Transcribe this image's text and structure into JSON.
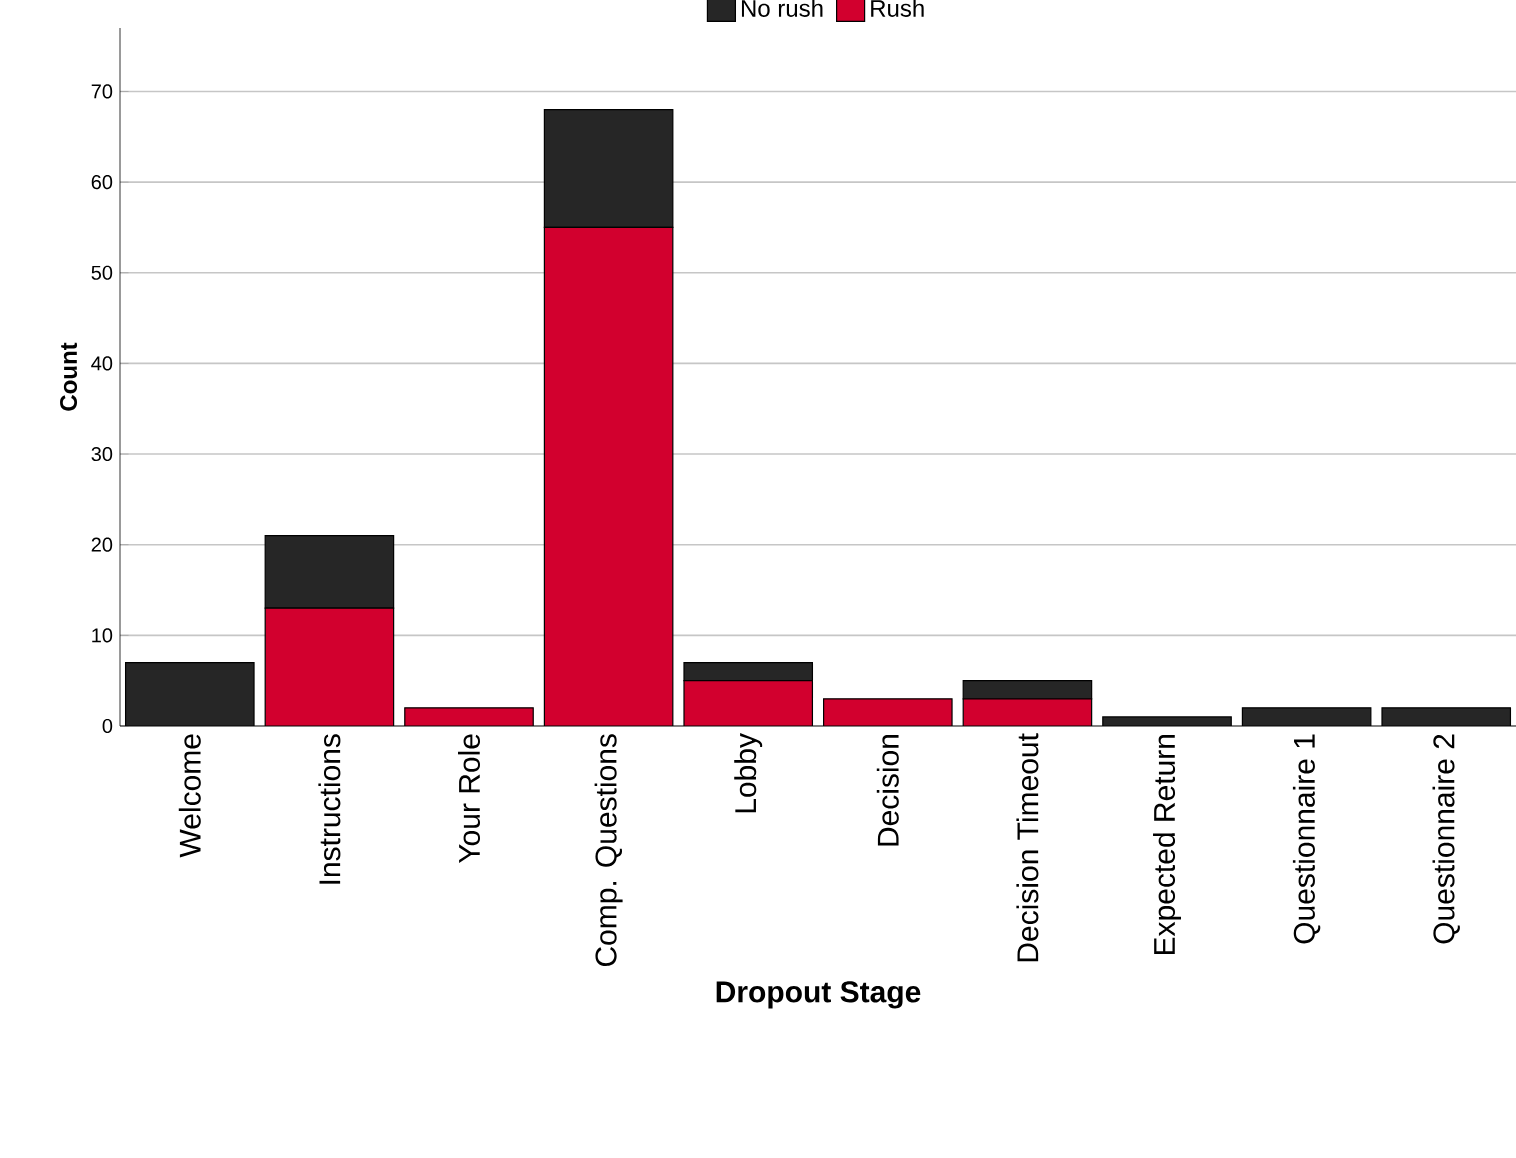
{
  "chart_data": {
    "type": "bar",
    "stacked": true,
    "xlabel": "Dropout Stage",
    "ylabel": "Count",
    "categories": [
      "Welcome",
      "Instructions",
      "Your Role",
      "Comp. Questions",
      "Lobby",
      "Decision",
      "Decision Timeout",
      "Expected Return",
      "Questionnaire 1",
      "Questionnaire 2"
    ],
    "series": [
      {
        "name": "Rush",
        "color": "#d2002e",
        "values": [
          0,
          13,
          2,
          55,
          5,
          3,
          3,
          0,
          0,
          0
        ]
      },
      {
        "name": "No rush",
        "color": "#262626",
        "values": [
          7,
          8,
          0,
          13,
          2,
          0,
          2,
          1,
          2,
          2
        ]
      }
    ],
    "ylim": [
      0,
      77
    ],
    "yticks": [
      0,
      10,
      20,
      30,
      40,
      50,
      60,
      70
    ],
    "grid": "y",
    "legend": "top"
  }
}
